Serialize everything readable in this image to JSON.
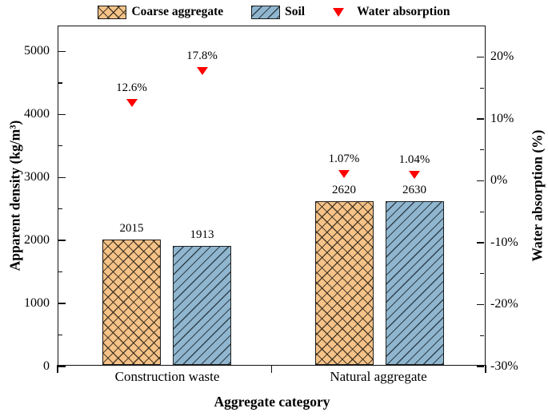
{
  "legend": {
    "items": [
      {
        "label": "Coarse aggregate",
        "swatch": "crosshatch-orange"
      },
      {
        "label": "Soil",
        "swatch": "diagonal-blue"
      },
      {
        "label": "Water absorption",
        "swatch": "red-triangle-marker"
      }
    ]
  },
  "colors": {
    "coarse_aggregate_fill": "#F5C288",
    "soil_fill": "#8FB6CE",
    "marker_red": "#FF0000",
    "axis_black": "#111111"
  },
  "chart_data": {
    "type": "bar",
    "title": "",
    "xlabel": "Aggregate category",
    "ylabel_left": "Apparent density (kg/m³)",
    "ylabel_right": "Water absorption (%)",
    "categories": [
      "Construction waste",
      "Natural aggregate"
    ],
    "series": [
      {
        "name": "Coarse aggregate",
        "pattern": "crosshatch",
        "color": "#F5C288",
        "values": [
          2015,
          2620
        ]
      },
      {
        "name": "Soil",
        "pattern": "diagonal",
        "color": "#8FB6CE",
        "values": [
          1913,
          2630
        ]
      }
    ],
    "groups": [
      {
        "category": "Construction waste",
        "bars": [
          {
            "series": "Coarse aggregate",
            "value": 2015,
            "value_label": "2015",
            "absorption_pct": 12.6,
            "absorption_label": "12.6%"
          },
          {
            "series": "Soil",
            "value": 1913,
            "value_label": "1913",
            "absorption_pct": 17.8,
            "absorption_label": "17.8%"
          }
        ]
      },
      {
        "category": "Natural aggregate",
        "bars": [
          {
            "series": "Coarse aggregate",
            "value": 2620,
            "value_label": "2620",
            "absorption_pct": 1.07,
            "absorption_label": "1.07%"
          },
          {
            "series": "Soil",
            "value": 2630,
            "value_label": "2630",
            "absorption_pct": 1.04,
            "absorption_label": "1.04%"
          }
        ]
      }
    ],
    "marker_series_name": "Water absorption",
    "left_axis": {
      "min": 0,
      "max": 5400,
      "ticks": [
        0,
        1000,
        2000,
        3000,
        4000,
        5000
      ],
      "tick_labels": [
        "0",
        "1000",
        "2000",
        "3000",
        "4000",
        "5000"
      ],
      "minor_step": 500
    },
    "right_axis": {
      "min": -30,
      "max": 25,
      "ticks": [
        20,
        10,
        0,
        -10,
        -20,
        -30
      ],
      "tick_labels": [
        "20%",
        "10%",
        "0%",
        "-10%",
        "-20%",
        "-30%"
      ],
      "minor_step": 5
    },
    "grid": false,
    "legend_position": "top-center"
  }
}
